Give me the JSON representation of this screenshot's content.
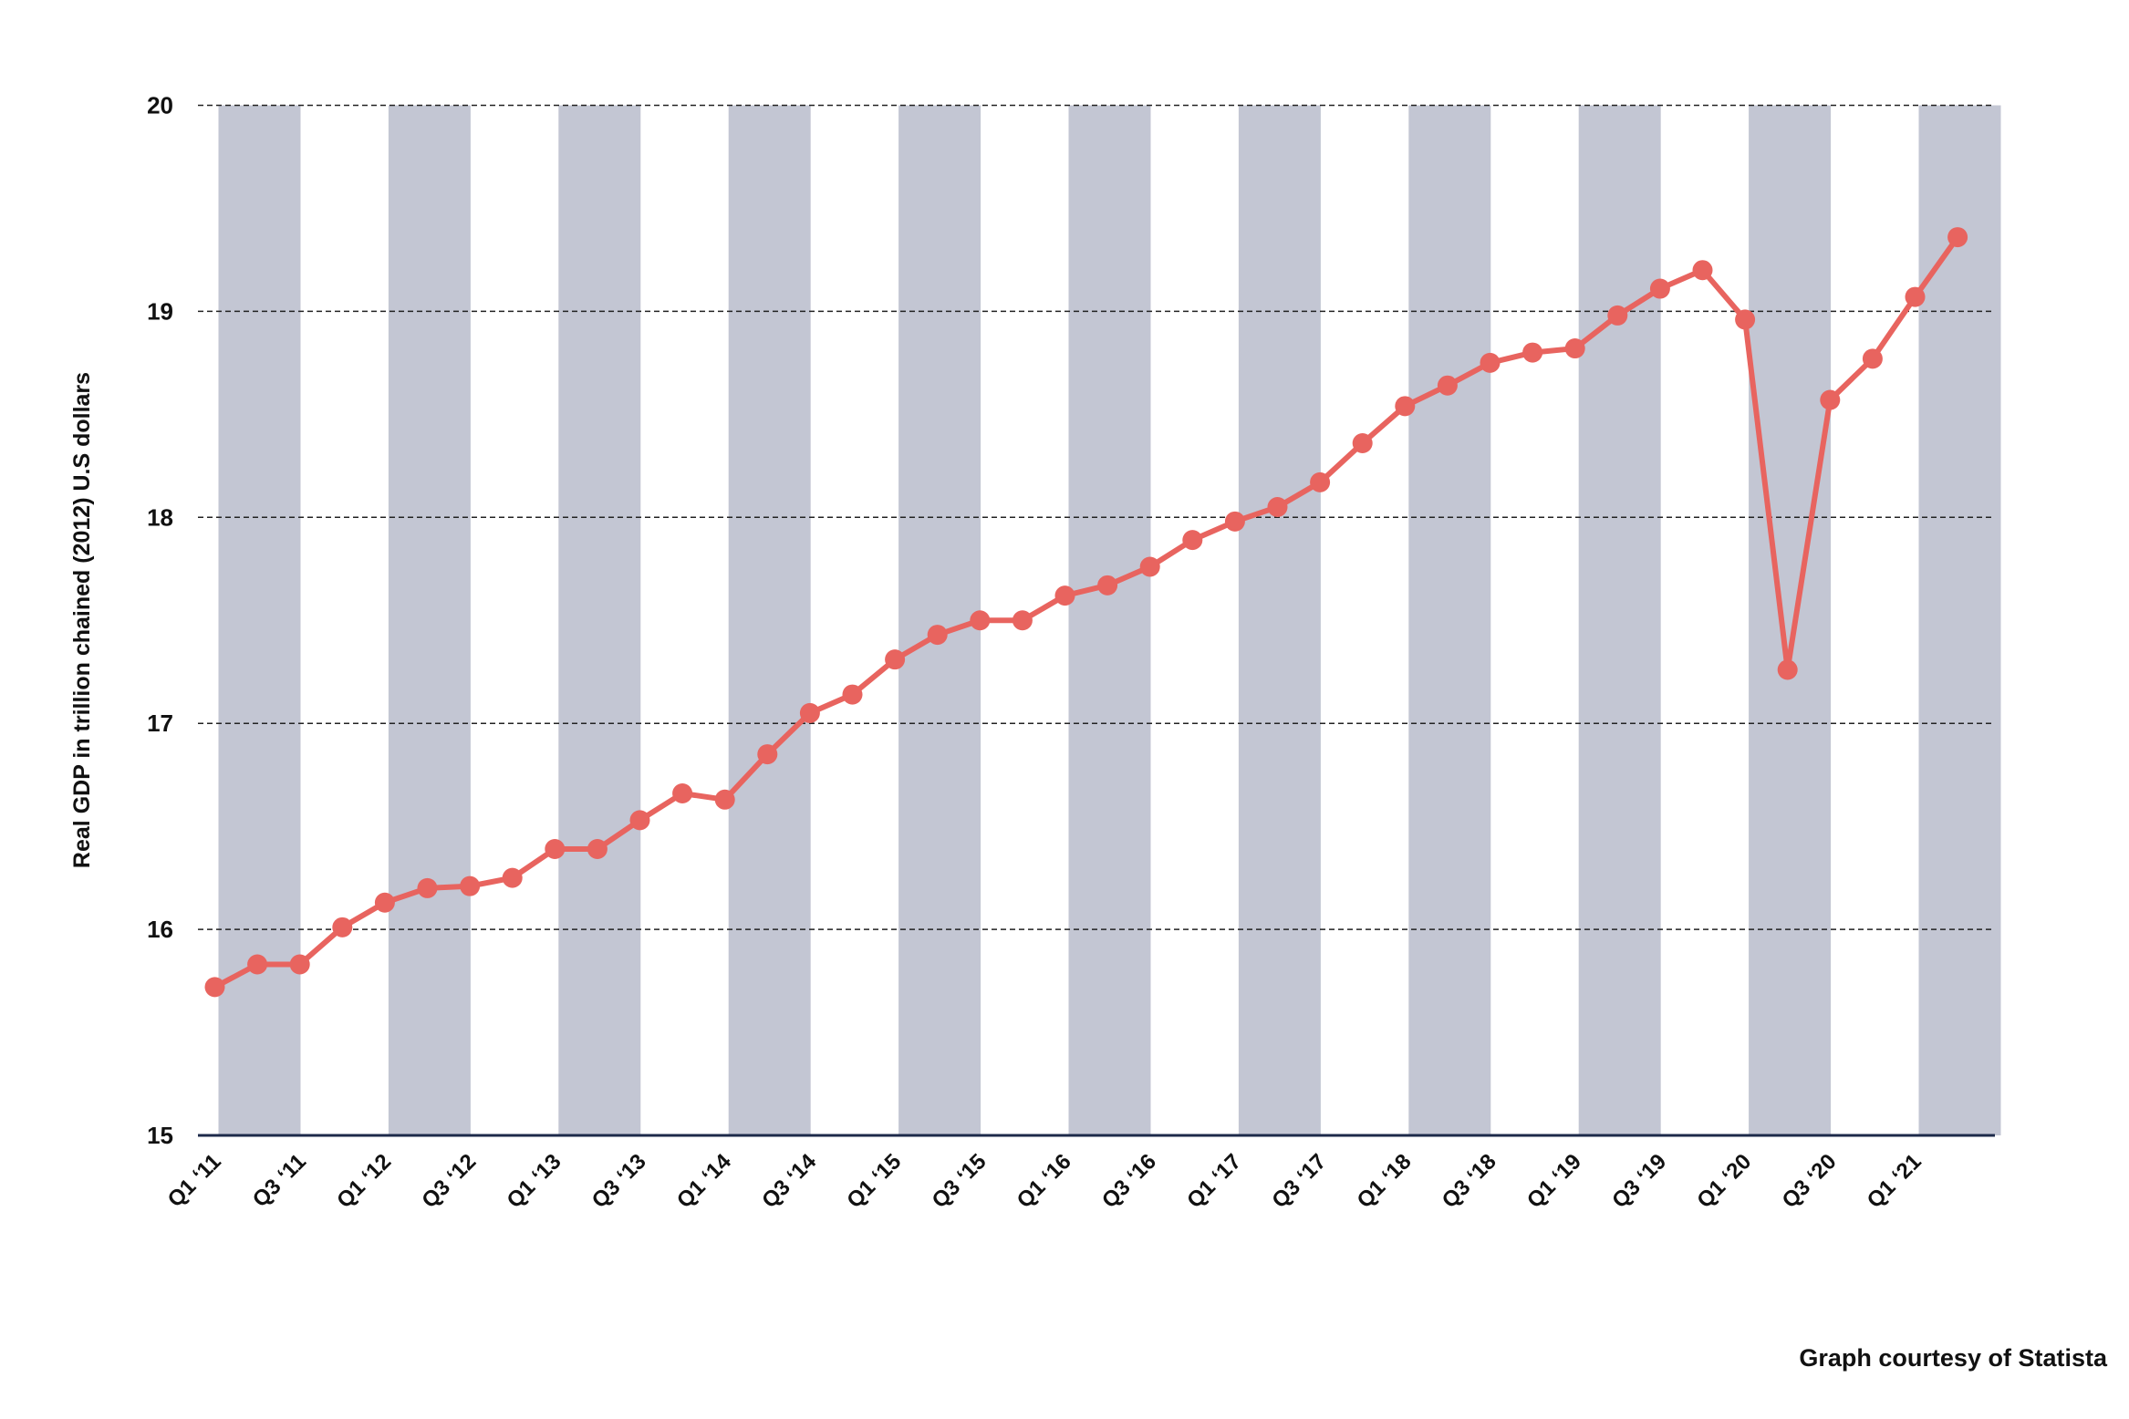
{
  "chart_data": {
    "type": "line",
    "y_label": "Real GDP in trillion chained (2012) U.S dollars",
    "source": "Graph courtesy of Statista",
    "categories": [
      "Q1 ‘11",
      null,
      "Q3 ‘11",
      null,
      "Q1 ‘12",
      null,
      "Q3 ‘12",
      null,
      "Q1 ‘13",
      null,
      "Q3 ‘13",
      null,
      "Q1 ‘14",
      null,
      "Q3 ‘14",
      null,
      "Q1 ‘15",
      null,
      "Q3 ‘15",
      null,
      "Q1 ‘16",
      null,
      "Q3 ‘16",
      null,
      "Q1 ‘17",
      null,
      "Q3 ‘17",
      null,
      "Q1 ‘18",
      null,
      "Q3 ‘18",
      null,
      "Q1 ‘19",
      null,
      "Q3 ‘19",
      null,
      "Q1 ‘20",
      null,
      "Q3 ‘20",
      null,
      "Q1 ‘21",
      null
    ],
    "series": [
      {
        "color": "#e8645f",
        "values": [
          15.72,
          15.83,
          15.83,
          16.01,
          16.13,
          16.2,
          16.21,
          16.25,
          16.39,
          16.39,
          16.53,
          16.66,
          16.63,
          16.85,
          17.05,
          17.14,
          17.31,
          17.43,
          17.5,
          17.5,
          17.62,
          17.67,
          17.76,
          17.89,
          17.98,
          18.05,
          18.17,
          18.36,
          18.54,
          18.64,
          18.75,
          18.8,
          18.82,
          18.98,
          19.11,
          19.2,
          18.96,
          17.26,
          18.57,
          18.77,
          19.07,
          19.36
        ]
      }
    ],
    "ylim": [
      15,
      20
    ],
    "yticks": [
      15,
      16,
      17,
      18,
      19,
      20
    ],
    "grid": true
  }
}
